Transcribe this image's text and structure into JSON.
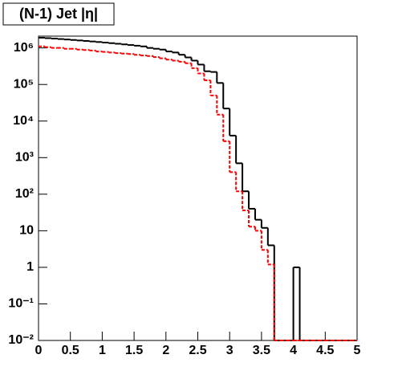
{
  "chart_data": {
    "type": "histogram",
    "title": "(N-1) Jet |η|",
    "bins": [
      0,
      0.1,
      0.2,
      0.3,
      0.4,
      0.5,
      0.6,
      0.7,
      0.8,
      0.9,
      1,
      1.1,
      1.2,
      1.3,
      1.4,
      1.5,
      1.6,
      1.7,
      1.8,
      1.9,
      2,
      2.1,
      2.2,
      2.3,
      2.4,
      2.5,
      2.6,
      2.7,
      2.8,
      2.9,
      3,
      3.1,
      3.2,
      3.3,
      3.4,
      3.5,
      3.6,
      3.7,
      3.8,
      3.9,
      4,
      4.1,
      4.2,
      4.3,
      4.4,
      4.5,
      4.6,
      4.7,
      4.8,
      4.9,
      5
    ],
    "series": [
      {
        "color": "#000000",
        "linestyle": "solid",
        "values": [
          1900000,
          1850000,
          1800000,
          1750000,
          1700000,
          1650000,
          1600000,
          1550000,
          1500000,
          1450000,
          1400000,
          1350000,
          1300000,
          1250000,
          1200000,
          1150000,
          1100000,
          1000000,
          950000,
          900000,
          800000,
          750000,
          650000,
          550000,
          450000,
          350000,
          230000,
          220000,
          110000,
          22000,
          4000,
          700,
          120,
          40,
          20,
          12,
          4,
          0,
          0,
          0,
          1,
          0,
          0,
          0,
          0,
          0,
          0,
          0,
          0,
          0
        ]
      },
      {
        "color": "#ff0000",
        "linestyle": "dashed",
        "values": [
          1100000,
          1050000,
          1000000,
          1000000,
          950000,
          950000,
          900000,
          880000,
          850000,
          800000,
          780000,
          750000,
          720000,
          700000,
          680000,
          650000,
          620000,
          600000,
          560000,
          520000,
          480000,
          450000,
          420000,
          380000,
          280000,
          200000,
          130000,
          50000,
          15000,
          2800,
          400,
          120,
          36,
          13,
          10,
          3,
          1.2,
          0,
          0,
          0,
          0,
          0,
          0,
          0,
          0,
          0,
          0,
          0,
          0,
          0
        ]
      }
    ],
    "xlim": [
      0,
      5
    ],
    "xticks": [
      0,
      0.5,
      1,
      1.5,
      2,
      2.5,
      3,
      3.5,
      4,
      4.5,
      5
    ],
    "ylim": [
      0.01,
      2100000
    ],
    "log_y": true,
    "yticks": [
      {
        "value": 0.01,
        "label": "10⁻²"
      },
      {
        "value": 0.1,
        "label": "10⁻¹"
      },
      1,
      10,
      {
        "value": 100,
        "label": "10²"
      },
      {
        "value": 1000,
        "label": "10³"
      },
      {
        "value": 10000,
        "label": "10⁴"
      },
      {
        "value": 100000,
        "label": "10⁵"
      },
      {
        "value": 1000000,
        "label": "10⁶"
      }
    ]
  }
}
